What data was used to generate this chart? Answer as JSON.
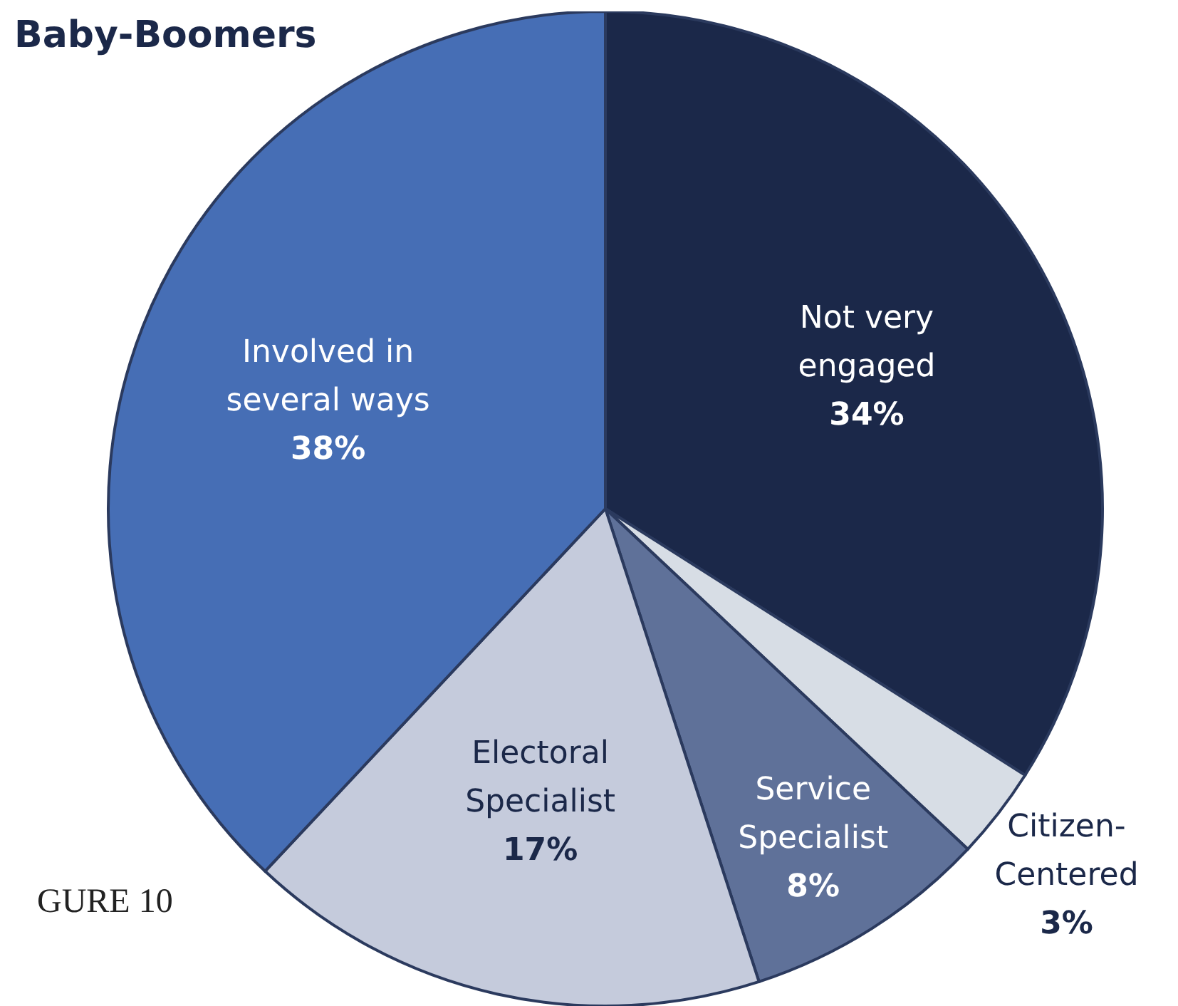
{
  "chart_data": {
    "type": "pie",
    "title": "Baby-Boomers",
    "categories": [
      "Not very engaged",
      "Citizen-Centered",
      "Service Specialist",
      "Electoral Specialist",
      "Involved in several ways"
    ],
    "values": [
      34,
      3,
      8,
      17,
      38
    ],
    "value_labels": [
      "34%",
      "3%",
      "8%",
      "17%",
      "38%"
    ],
    "colors": [
      "#1b2849",
      "#d7dde5",
      "#5f7199",
      "#c5cbdc",
      "#466eb5"
    ],
    "annotations": [
      "GURE 10"
    ],
    "legend": false
  }
}
